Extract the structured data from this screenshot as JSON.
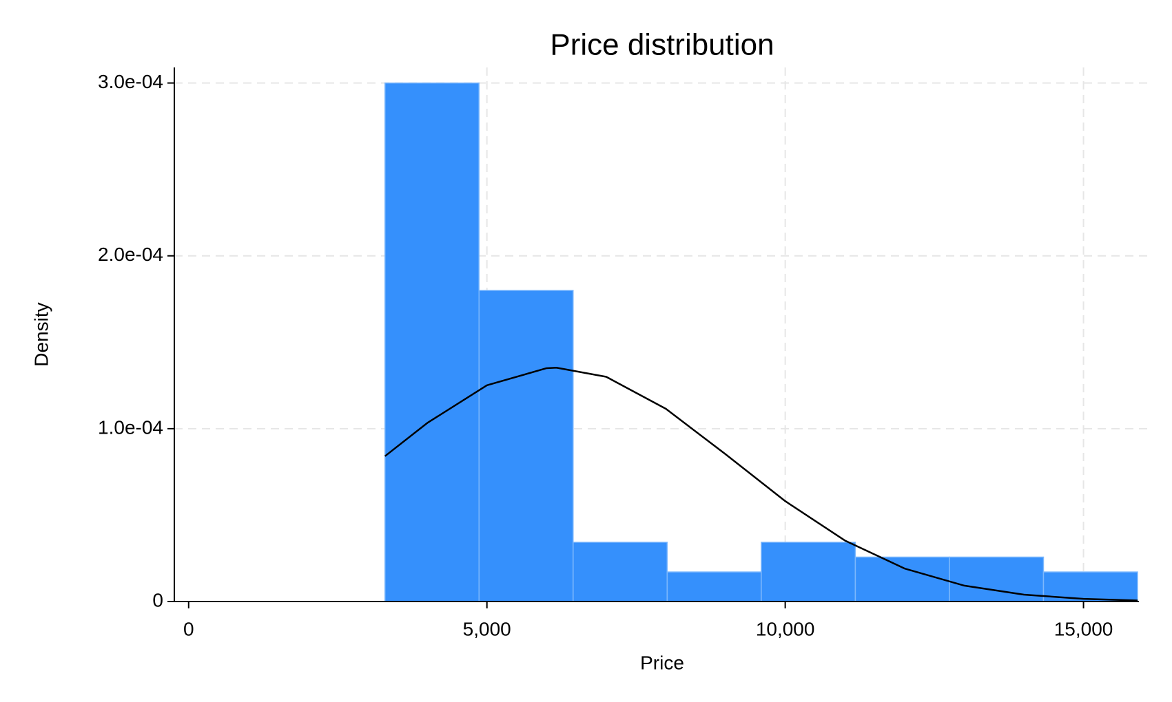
{
  "chart_data": {
    "type": "histogram",
    "title": "Price distribution",
    "x_label": "Price",
    "y_label": "Density",
    "bins": [
      3291,
      4867.875,
      6444.75,
      8021.625,
      9598.5,
      11175.375,
      12752.25,
      14329.125,
      15906
    ],
    "values": [
      0.0003,
      0.00018,
      3.43e-05,
      1.71e-05,
      3.43e-05,
      2.57e-05,
      2.57e-05,
      1.71e-05
    ],
    "color": "#3590fc",
    "curve": {
      "x": [
        3291,
        4000,
        5000,
        6000,
        6165,
        7000,
        8000,
        9000,
        10000,
        11000,
        12000,
        13000,
        14000,
        15000,
        15906
      ],
      "y": [
        8.41e-05,
        0.0001033,
        0.0001251,
        0.000135,
        0.0001353,
        0.00013,
        0.0001115,
        8.52e-05,
        5.81e-05,
        3.53e-05,
        1.91e-05,
        9.2e-06,
        3.97e-06,
        1.52e-06,
        5.8e-07
      ],
      "color": "#000000"
    },
    "xlim": [
      -240,
      16160
    ],
    "ylim": [
      0,
      0.000309
    ],
    "xticks": [
      0,
      {
        "value": 5000,
        "label": "5,000"
      },
      {
        "value": 10000,
        "label": "10,000"
      },
      {
        "value": 15000,
        "label": "15,000"
      }
    ],
    "yticks": [
      0,
      {
        "value": 0.0001,
        "label": "1.0e-04"
      },
      {
        "value": 0.0002,
        "label": "2.0e-04"
      },
      {
        "value": 0.0003,
        "label": "3.0e-04"
      }
    ],
    "grid": true
  }
}
